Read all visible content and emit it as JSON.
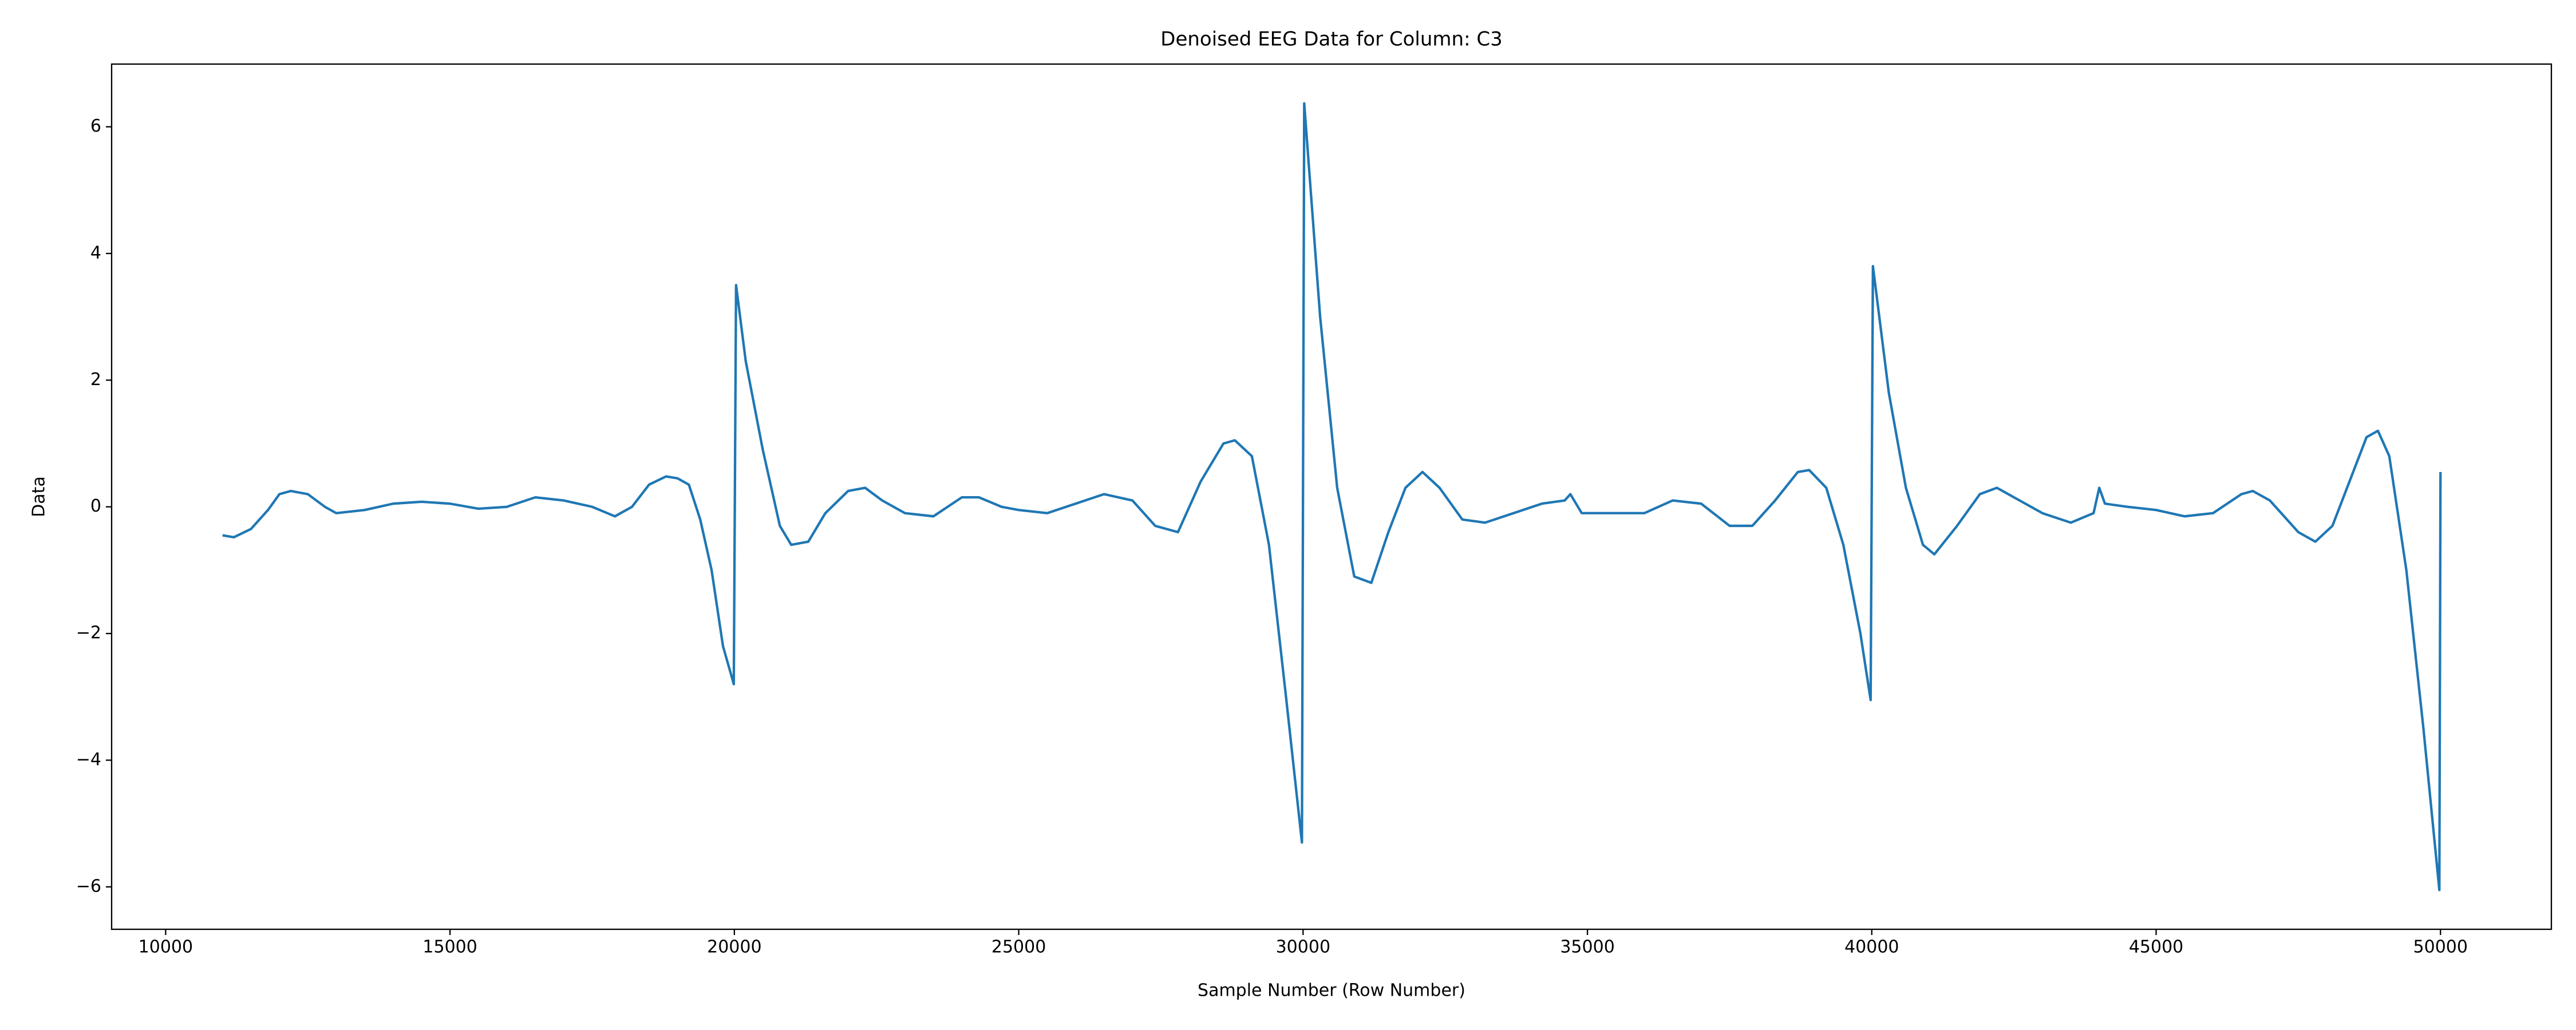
{
  "chart_data": {
    "type": "line",
    "title": "Denoised EEG Data for Column: C3",
    "xlabel": "Sample Number (Row Number)",
    "ylabel": "Data",
    "xlim": [
      9050,
      51950
    ],
    "ylim": [
      -6.67,
      6.99
    ],
    "xticks": [
      10000,
      15000,
      20000,
      25000,
      30000,
      35000,
      40000,
      45000,
      50000
    ],
    "yticks": [
      {
        "value": -6,
        "label": "−6"
      },
      {
        "value": -4,
        "label": "−4"
      },
      {
        "value": -2,
        "label": "−2"
      },
      0,
      2,
      4,
      6
    ],
    "x": [
      11000,
      11200,
      11500,
      11800,
      12000,
      12200,
      12500,
      12800,
      13000,
      13500,
      14000,
      14500,
      15000,
      15500,
      16000,
      16500,
      17000,
      17500,
      17900,
      18200,
      18500,
      18800,
      19000,
      19200,
      19400,
      19600,
      19800,
      19990,
      20030,
      20200,
      20500,
      20800,
      21000,
      21300,
      21600,
      22000,
      22300,
      22600,
      23000,
      23500,
      24000,
      24300,
      24700,
      25000,
      25500,
      26000,
      26500,
      27000,
      27400,
      27800,
      28200,
      28600,
      28800,
      29100,
      29400,
      29700,
      29980,
      30020,
      30300,
      30600,
      30900,
      31200,
      31500,
      31800,
      32100,
      32400,
      32800,
      33200,
      33700,
      34200,
      34600,
      34700,
      34900,
      35500,
      36000,
      36500,
      37000,
      37500,
      37900,
      38300,
      38700,
      38900,
      39200,
      39500,
      39800,
      39980,
      40020,
      40300,
      40600,
      40900,
      41100,
      41500,
      41900,
      42200,
      42600,
      43000,
      43500,
      43900,
      44000,
      44100,
      44500,
      45000,
      45500,
      46000,
      46500,
      46700,
      47000,
      47500,
      47800,
      48100,
      48400,
      48700,
      48900,
      49100,
      49400,
      49700,
      49980,
      50000
    ],
    "series": [
      {
        "color": "#1f77b4",
        "values": [
          -0.45,
          -0.48,
          -0.35,
          -0.05,
          0.2,
          0.25,
          0.2,
          0.0,
          -0.1,
          -0.05,
          0.05,
          0.08,
          0.05,
          -0.03,
          0.0,
          0.15,
          0.1,
          0.0,
          -0.15,
          0.0,
          0.35,
          0.48,
          0.45,
          0.35,
          -0.2,
          -1.0,
          -2.2,
          -2.8,
          3.5,
          2.3,
          0.9,
          -0.3,
          -0.6,
          -0.55,
          -0.1,
          0.25,
          0.3,
          0.1,
          -0.1,
          -0.15,
          0.15,
          0.15,
          0.0,
          -0.05,
          -0.1,
          0.05,
          0.2,
          0.1,
          -0.3,
          -0.4,
          0.4,
          1.0,
          1.05,
          0.8,
          -0.6,
          -3.0,
          -5.3,
          6.37,
          3.0,
          0.3,
          -1.1,
          -1.2,
          -0.4,
          0.3,
          0.55,
          0.3,
          -0.2,
          -0.25,
          -0.1,
          0.05,
          0.1,
          0.2,
          -0.1,
          -0.1,
          -0.1,
          0.1,
          0.05,
          -0.3,
          -0.3,
          0.1,
          0.55,
          0.58,
          0.3,
          -0.6,
          -2.0,
          -3.05,
          3.8,
          1.8,
          0.3,
          -0.6,
          -0.75,
          -0.3,
          0.2,
          0.3,
          0.1,
          -0.1,
          -0.25,
          -0.1,
          0.3,
          0.05,
          0.0,
          -0.05,
          -0.15,
          -0.1,
          0.2,
          0.25,
          0.1,
          -0.4,
          -0.55,
          -0.3,
          0.4,
          1.1,
          1.2,
          0.8,
          -1.0,
          -3.5,
          -6.05,
          0.55
        ]
      }
    ]
  }
}
